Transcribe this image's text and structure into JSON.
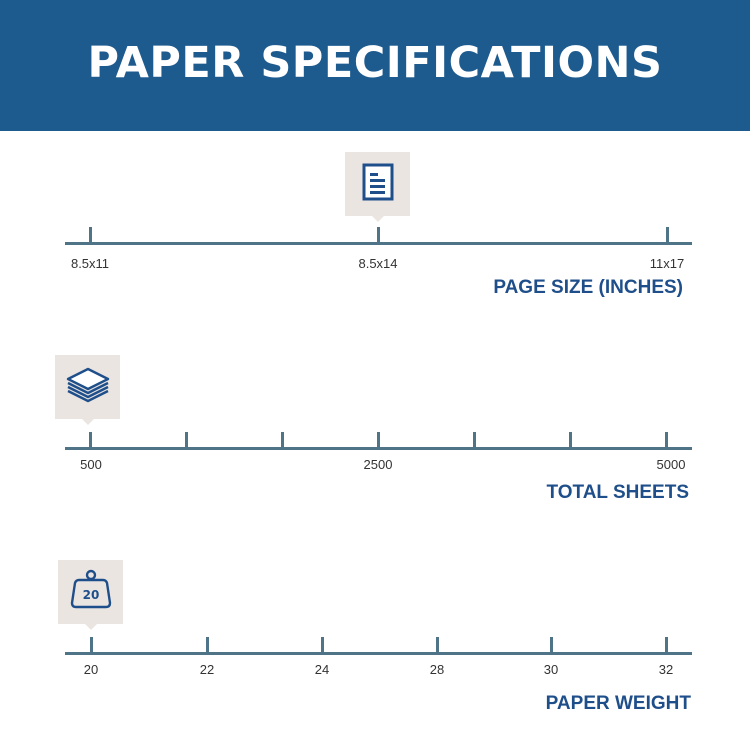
{
  "header": {
    "title": "PAPER SPECIFICATIONS"
  },
  "colors": {
    "header_bg": "#1d5a8e",
    "axis": "#4f7488",
    "title_text": "#1f4f8a",
    "badge_bg": "#ebe5e2"
  },
  "scales": [
    {
      "title": "PAGE SIZE (INCHES)",
      "icon": "document-icon",
      "labels": [
        "8.5x11",
        "8.5x14",
        "11x17"
      ],
      "selected": "8.5x14"
    },
    {
      "title": "TOTAL SHEETS",
      "icon": "paper-stack-icon",
      "labels": [
        "500",
        "2500",
        "5000"
      ],
      "tick_count": 7,
      "selected": "500"
    },
    {
      "title": "PAPER WEIGHT",
      "icon": "weight-icon",
      "icon_text": "20",
      "labels": [
        "20",
        "22",
        "24",
        "28",
        "30",
        "32"
      ],
      "selected": "20"
    }
  ]
}
